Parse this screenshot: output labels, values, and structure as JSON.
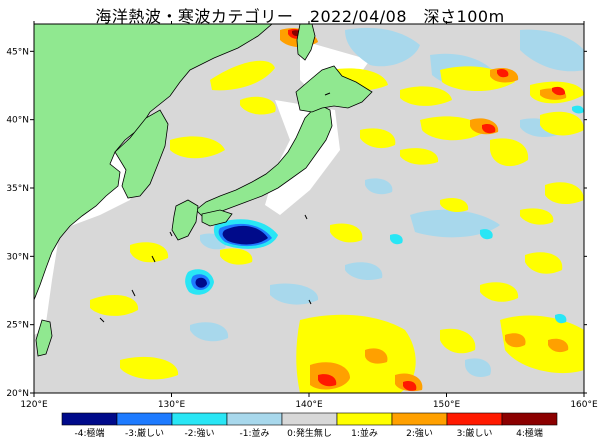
{
  "title": "海洋熱波・寒波カテゴリー　2022/04/08　深さ100m",
  "map": {
    "lon_range": [
      120,
      160
    ],
    "lat_range": [
      20,
      47
    ],
    "x_ticks": [
      {
        "value": 120,
        "label": "120°E"
      },
      {
        "value": 130,
        "label": "130°E"
      },
      {
        "value": 140,
        "label": "140°E"
      },
      {
        "value": 150,
        "label": "150°E"
      },
      {
        "value": 160,
        "label": "160°E"
      }
    ],
    "y_ticks": [
      {
        "value": 20,
        "label": "20°N"
      },
      {
        "value": 25,
        "label": "25°N"
      },
      {
        "value": 30,
        "label": "30°N"
      },
      {
        "value": 35,
        "label": "35°N"
      },
      {
        "value": 40,
        "label": "40°N"
      },
      {
        "value": 45,
        "label": "45°N"
      }
    ]
  },
  "legend": [
    {
      "label": "-4:極端",
      "color": "#000a8a"
    },
    {
      "label": "-3:厳しい",
      "color": "#1e7bff"
    },
    {
      "label": "-2:強い",
      "color": "#29e6f5"
    },
    {
      "label": "-1:並み",
      "color": "#a8d8ec"
    },
    {
      "label": "0:発生無し",
      "color": "#d8d8d8"
    },
    {
      "label": "1:並み",
      "color": "#ffff00"
    },
    {
      "label": "2:強い",
      "color": "#ffa000"
    },
    {
      "label": "3:厳しい",
      "color": "#ff1a00"
    },
    {
      "label": "4:極端",
      "color": "#8b0000"
    }
  ],
  "colors": {
    "land": "#90e890",
    "ocean_none": "#d8d8d8",
    "moderate_warm": "#ffff00",
    "strong_warm": "#ffa000",
    "severe_warm": "#ff1a00",
    "extreme_warm": "#8b0000",
    "moderate_cold": "#a8d8ec",
    "strong_cold": "#29e6f5",
    "severe_cold": "#1e7bff",
    "extreme_cold": "#000a8a"
  }
}
